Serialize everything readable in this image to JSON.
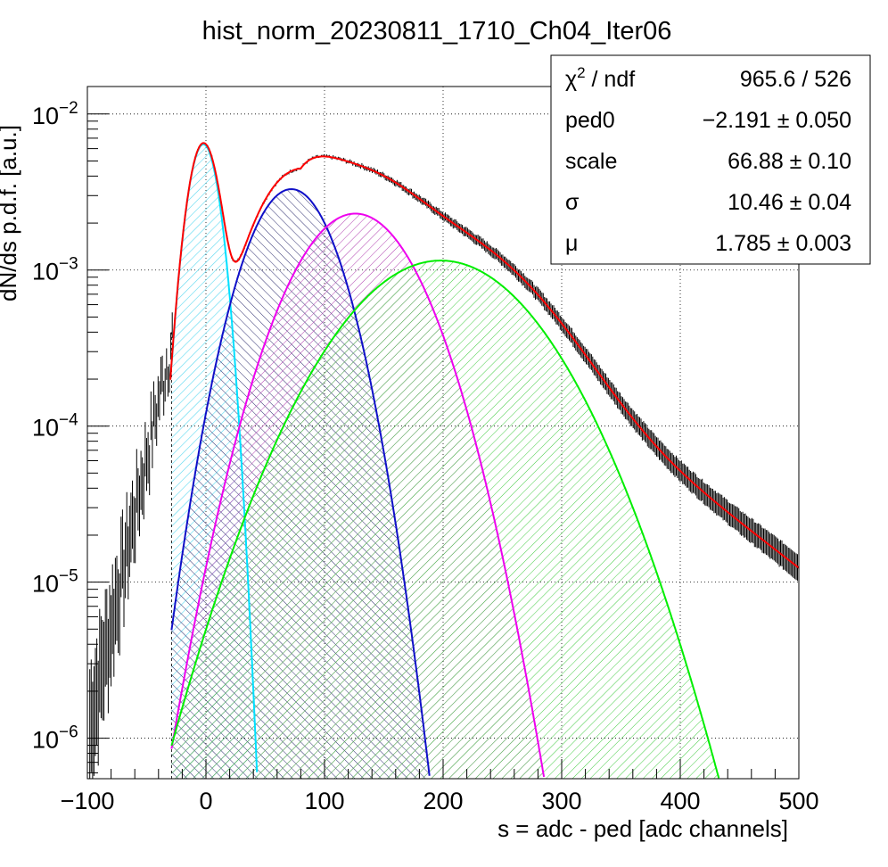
{
  "chart_data": {
    "type": "line",
    "title": "hist_norm_20230811_1710_Ch04_Iter06",
    "xlabel": "s = adc - ped [adc channels]",
    "ylabel": "dN/ds p.d.f. [a.u.]",
    "xlim": [
      -100,
      500
    ],
    "ylim": [
      5.5e-07,
      0.015
    ],
    "yscale": "log",
    "grid": true,
    "x_ticks": [
      {
        "value": -100,
        "label": "−100"
      },
      {
        "value": 0,
        "label": "0"
      },
      {
        "value": 100,
        "label": "100"
      },
      {
        "value": 200,
        "label": "200"
      },
      {
        "value": 300,
        "label": "300"
      },
      {
        "value": 400,
        "label": "400"
      },
      {
        "value": 500,
        "label": "500"
      }
    ],
    "y_ticks": [
      {
        "value": 1e-06,
        "base": "10",
        "exp": "−6"
      },
      {
        "value": 1e-05,
        "base": "10",
        "exp": "−5"
      },
      {
        "value": 0.0001,
        "base": "10",
        "exp": "−4"
      },
      {
        "value": 0.001,
        "base": "10",
        "exp": "−3"
      },
      {
        "value": 0.01,
        "base": "10",
        "exp": "−2"
      }
    ],
    "fit": {
      "ped0": -2.191,
      "scale": 66.88,
      "sigma": 10.46,
      "mu": 1.785,
      "color": "#ff0000"
    },
    "components": [
      {
        "pe": 1,
        "color": "#00e0ff",
        "hatch": "#5ad8f0"
      },
      {
        "pe": 2,
        "color": "#1010c8",
        "hatch": "#303070"
      },
      {
        "pe": 3,
        "color": "#ee00ee",
        "hatch": "#b040b0"
      },
      {
        "pe": 4,
        "color": "#00ee00",
        "hatch": "#44cc44"
      }
    ],
    "stats": [
      {
        "name": "χ",
        "sup": "2",
        "suffix": " / ndf",
        "value": "965.6 / 526"
      },
      {
        "name": "ped0",
        "value": "−2.191 ± 0.050"
      },
      {
        "name": "scale",
        "value": "66.88 ± 0.10"
      },
      {
        "name": "σ",
        "value": "10.46 ± 0.04"
      },
      {
        "name": "μ",
        "value": "1.785 ± 0.003"
      }
    ]
  }
}
